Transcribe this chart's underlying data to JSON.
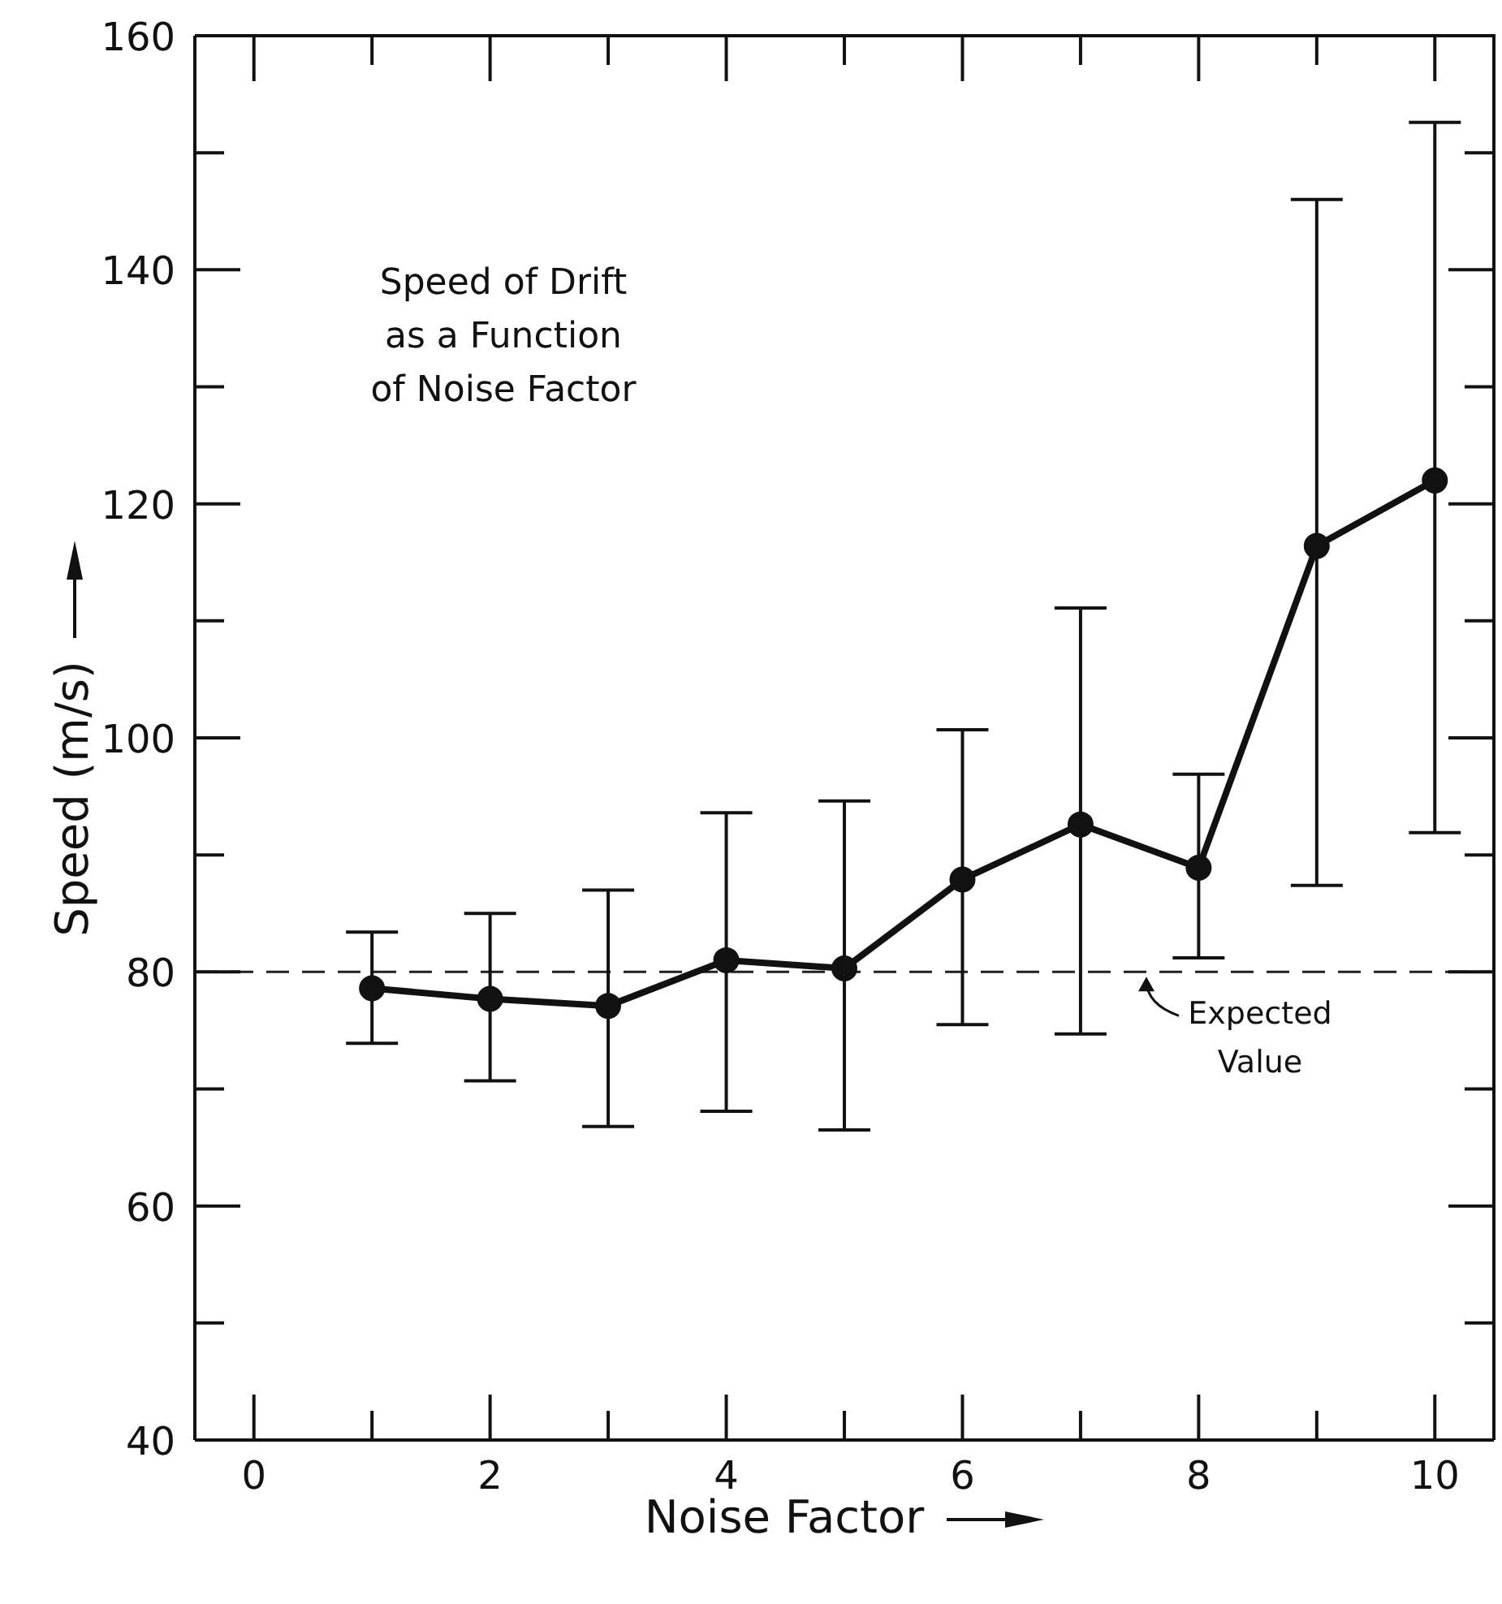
{
  "chart_data": {
    "type": "line",
    "title": "Speed of Drift\nas a Function\nof Noise Factor",
    "xlabel": "Noise Factor",
    "ylabel": "Speed (m/s)",
    "x": [
      1,
      2,
      3,
      4,
      5,
      6,
      7,
      8,
      9,
      10
    ],
    "series": [
      {
        "color": "#111111",
        "values": [
          78.6,
          77.7,
          77.1,
          81.0,
          80.3,
          87.9,
          92.6,
          88.9,
          116.4,
          122.0
        ],
        "errors": [
          [
            73.9,
            83.4
          ],
          [
            70.7,
            85.0
          ],
          [
            66.8,
            87.0
          ],
          [
            68.1,
            93.6
          ],
          [
            66.5,
            94.6
          ],
          [
            75.5,
            100.7
          ],
          [
            74.7,
            111.1
          ],
          [
            81.2,
            96.9
          ],
          [
            87.4,
            146.0
          ],
          [
            91.9,
            152.6
          ]
        ]
      }
    ],
    "xlim": [
      -0.5,
      10.5
    ],
    "xticks": [
      0,
      2,
      4,
      6,
      8,
      10
    ],
    "ylim": [
      40,
      160
    ],
    "yticks": [
      40,
      60,
      80,
      100,
      120,
      140,
      160
    ],
    "ref_lines": [
      {
        "axis": "y",
        "value": 80,
        "label": "Expected Value",
        "line_style": "dashed",
        "color": "#222222"
      }
    ],
    "marker": "circle",
    "line_style": "solid"
  }
}
